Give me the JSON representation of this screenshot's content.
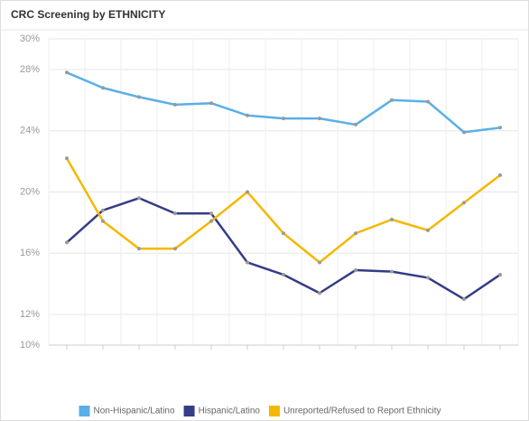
{
  "chart_data": {
    "type": "line",
    "title": "CRC Screening by ETHNICITY",
    "categories": [
      null,
      null,
      null,
      null,
      null,
      null,
      null,
      null,
      null,
      null,
      null,
      null,
      null
    ],
    "series": [
      {
        "name": "Non-Hispanic/Latino",
        "color": "#5aafe8",
        "values": [
          27.8,
          26.8,
          26.2,
          25.7,
          25.8,
          25.0,
          24.8,
          24.8,
          24.4,
          26.0,
          25.9,
          23.9,
          24.2
        ]
      },
      {
        "name": "Hispanic/Latino",
        "color": "#353c88",
        "values": [
          16.7,
          18.8,
          19.6,
          18.6,
          18.6,
          15.4,
          14.6,
          13.4,
          14.9,
          14.8,
          14.4,
          13.0,
          14.6
        ]
      },
      {
        "name": "Unreported/Refused to Report Ethnicity",
        "color": "#f5b800",
        "values": [
          22.2,
          18.1,
          16.3,
          16.3,
          18.1,
          20.0,
          17.3,
          15.4,
          17.3,
          18.2,
          17.5,
          19.3,
          21.1
        ]
      }
    ],
    "ylim": [
      10,
      30
    ],
    "yticks": [
      {
        "value": 10,
        "label": "10%"
      },
      {
        "value": 12,
        "label": "12%"
      },
      {
        "value": 16,
        "label": "16%"
      },
      {
        "value": 20,
        "label": "20%"
      },
      {
        "value": 24,
        "label": "24%"
      },
      {
        "value": 28,
        "label": "28%"
      },
      {
        "value": 30,
        "label": "30%"
      }
    ],
    "grid": true,
    "legend": "bottom"
  }
}
